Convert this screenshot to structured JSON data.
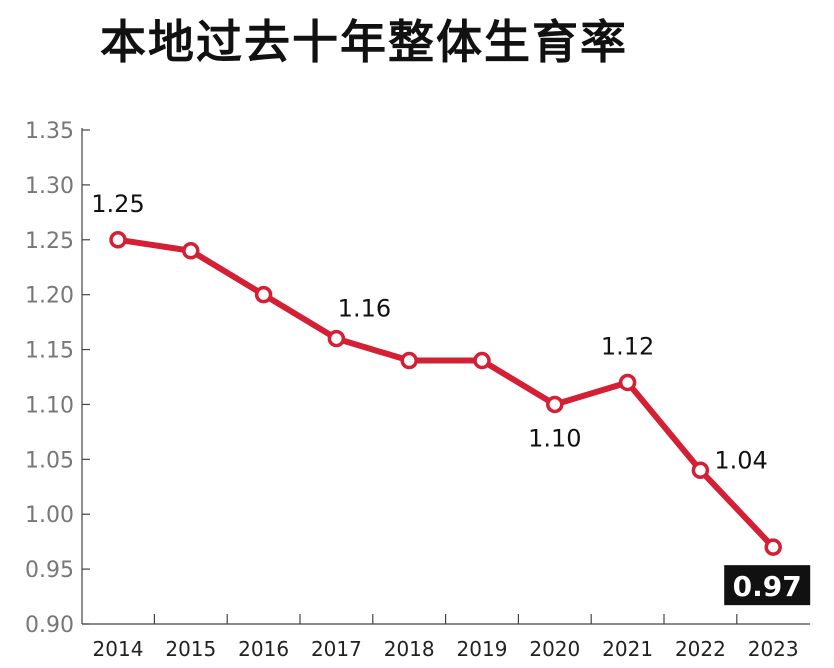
{
  "chart_data": {
    "type": "line",
    "title": "本地过去十年整体生育率",
    "xlabel": "",
    "ylabel": "",
    "x": [
      "2014",
      "2015",
      "2016",
      "2017",
      "2018",
      "2019",
      "2020",
      "2021",
      "2022",
      "2023"
    ],
    "series": [
      {
        "values": [
          1.25,
          1.24,
          1.2,
          1.16,
          1.14,
          1.14,
          1.1,
          1.12,
          1.04,
          0.97
        ]
      }
    ],
    "ylim": [
      0.9,
      1.35
    ],
    "yticks": [
      "1.35",
      "1.30",
      "1.25",
      "1.20",
      "1.15",
      "1.10",
      "1.05",
      "1.00",
      "0.95",
      "0.90"
    ],
    "data_labels": [
      {
        "index": 0,
        "text": "1.25",
        "placement": "above"
      },
      {
        "index": 3,
        "text": "1.16",
        "placement": "above-right"
      },
      {
        "index": 6,
        "text": "1.10",
        "placement": "below"
      },
      {
        "index": 7,
        "text": "1.12",
        "placement": "above"
      },
      {
        "index": 8,
        "text": "1.04",
        "placement": "right"
      },
      {
        "index": 9,
        "text": "0.97",
        "placement": "below-highlight"
      }
    ],
    "grid": false,
    "line_color": "#d41f35",
    "highlight_bg": "#111111",
    "highlight_fg": "#ffffff"
  }
}
